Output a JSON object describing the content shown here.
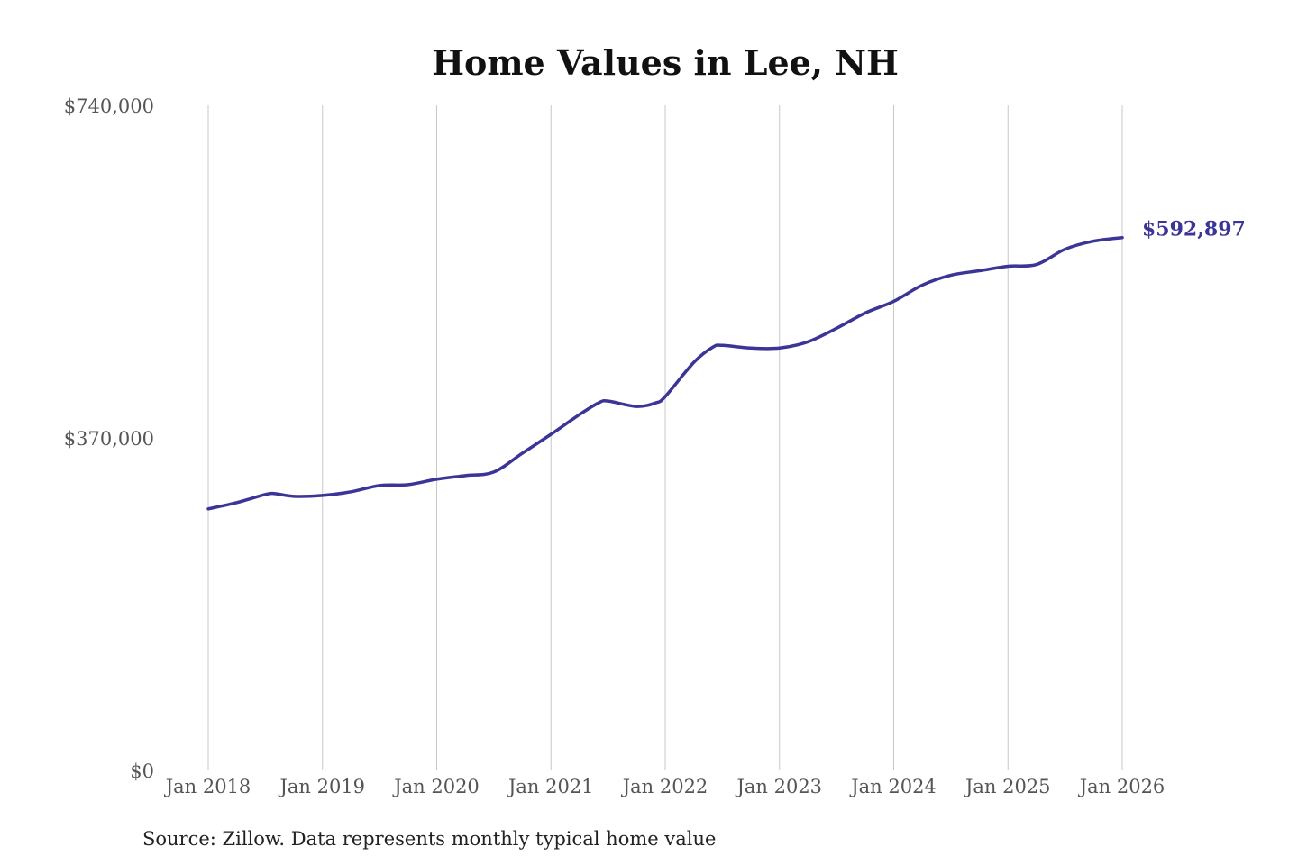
{
  "chart_data": {
    "type": "line",
    "title": "Home Values in Lee, NH",
    "source": "Source: Zillow. Data represents monthly typical home value",
    "xlabel": "",
    "ylabel": "",
    "ylim": [
      0,
      740000
    ],
    "y_ticks": [
      0,
      370000,
      740000
    ],
    "y_tick_labels": [
      "$0",
      "$370,000",
      "$740,000"
    ],
    "x_ticks": [
      "2018-01",
      "2019-01",
      "2020-01",
      "2021-01",
      "2022-01",
      "2023-01",
      "2024-01",
      "2025-01",
      "2026-01"
    ],
    "x_tick_labels": [
      "Jan 2018",
      "Jan 2019",
      "Jan 2020",
      "Jan 2021",
      "Jan 2022",
      "Jan 2023",
      "Jan 2024",
      "Jan 2025",
      "Jan 2026"
    ],
    "grid": "vertical",
    "line_color": "#3a3596",
    "end_label": "$592,897",
    "series": [
      {
        "x": [
          "2018-01",
          "2018-04",
          "2018-07",
          "2018-08",
          "2018-10",
          "2019-01",
          "2019-04",
          "2019-07",
          "2019-10",
          "2020-01",
          "2020-04",
          "2020-07",
          "2020-10",
          "2021-01",
          "2021-04",
          "2021-06",
          "2021-07",
          "2021-10",
          "2021-12",
          "2022-01",
          "2022-04",
          "2022-06",
          "2022-07",
          "2022-10",
          "2023-01",
          "2023-04",
          "2023-07",
          "2023-10",
          "2024-01",
          "2024-04",
          "2024-07",
          "2024-10",
          "2025-01",
          "2025-04",
          "2025-07",
          "2025-10",
          "2026-01"
        ],
        "values": [
          291000,
          298000,
          307000,
          308000,
          305000,
          306000,
          310000,
          317000,
          318000,
          324000,
          328000,
          332000,
          353000,
          374000,
          396000,
          409000,
          411000,
          405000,
          409000,
          416000,
          454000,
          471000,
          473000,
          470000,
          470000,
          477000,
          492000,
          509000,
          522000,
          540000,
          551000,
          556000,
          561000,
          563000,
          580000,
          589000,
          592897
        ]
      }
    ]
  }
}
